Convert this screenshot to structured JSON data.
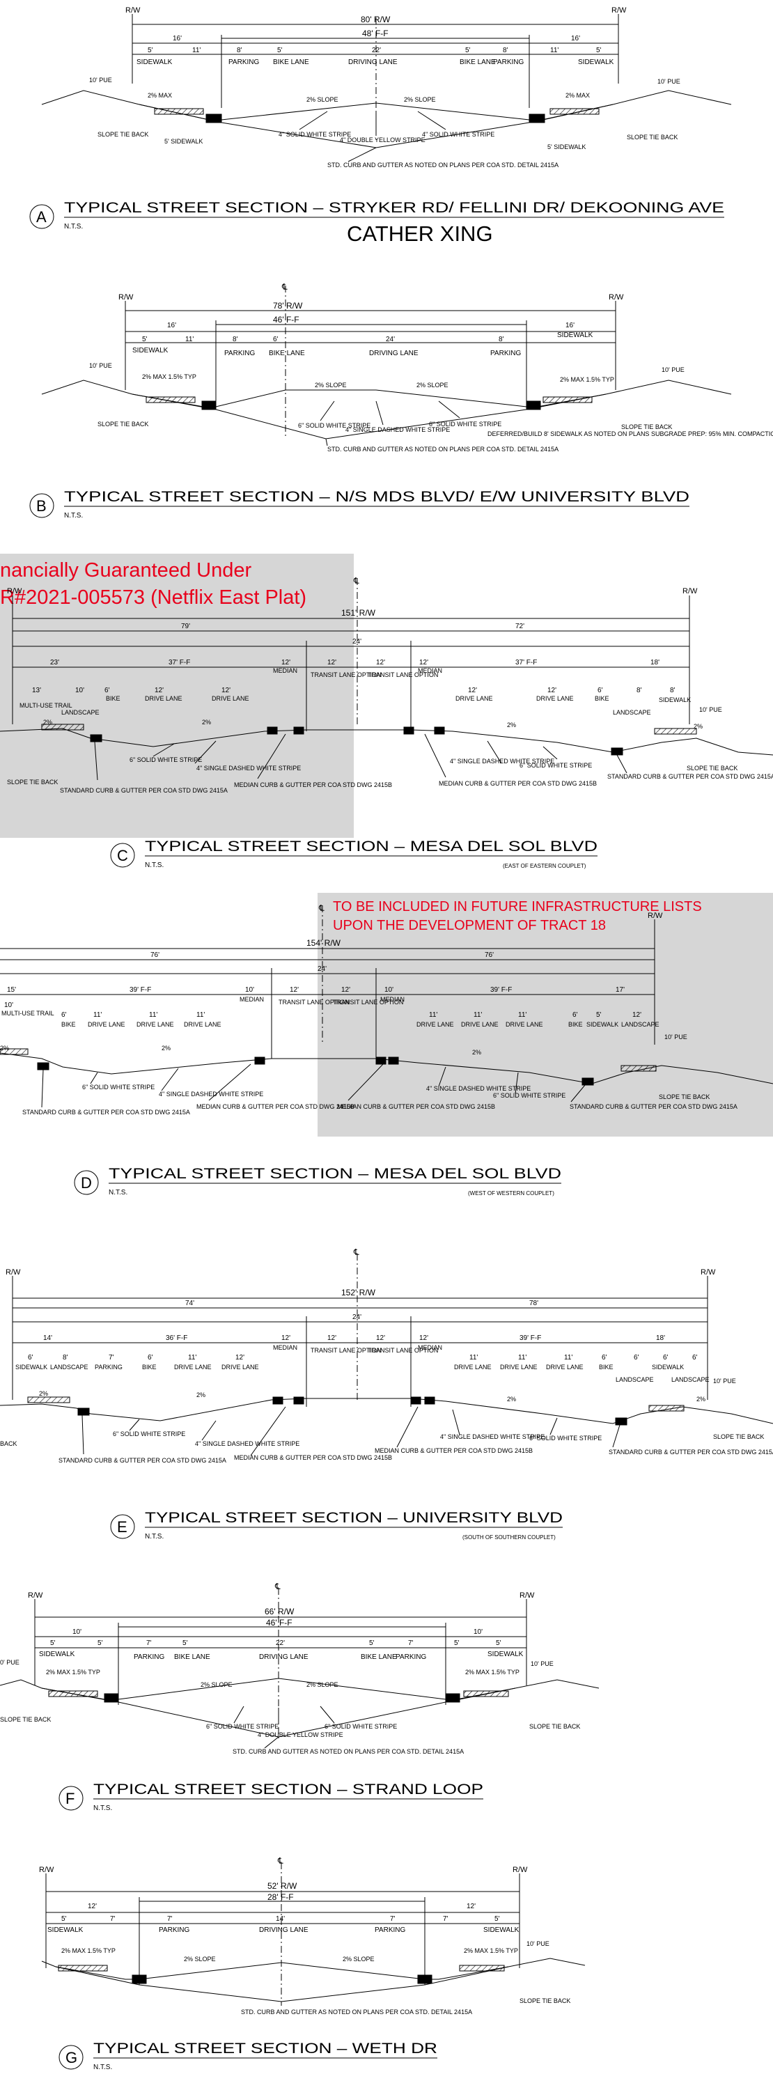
{
  "sections": [
    {
      "letter": "A",
      "title": "TYPICAL STREET SECTION – STRYKER RD/ FELLINI DR/ DEKOONING AVE",
      "scale": "N.T.S.",
      "subtitle": "CATHER XING",
      "row": "80' R/W",
      "ff": "48' F-F",
      "dims": [
        "16'",
        "5'",
        "11'",
        "8'",
        "5'",
        "22'",
        "5'",
        "8'",
        "11'",
        "5'",
        "16'"
      ],
      "lanes": [
        "SIDEWALK",
        "PARKING",
        "BIKE LANE",
        "DRIVING LANE",
        "BIKE LANE",
        "PARKING",
        "SIDEWALK"
      ],
      "notes": [
        "10' PUE",
        "2% MAX",
        "2% SLOPE",
        "2% SLOPE",
        "2% MAX",
        "10' PUE",
        "4\" SOLID WHITE STRIPE",
        "4\" DOUBLE YELLOW STRIPE",
        "4\" SOLID WHITE STRIPE",
        "SLOPE TIE BACK",
        "5' SIDEWALK",
        "STD. CURB AND GUTTER AS NOTED ON PLANS PER COA STD. DETAIL 2415A",
        "5' SIDEWALK",
        "SLOPE TIE BACK"
      ]
    },
    {
      "letter": "B",
      "title": "TYPICAL STREET SECTION – N/S MDS BLVD/ E/W UNIVERSITY BLVD",
      "scale": "N.T.S.",
      "row": "78' R/W",
      "ff": "46' F-F",
      "dims": [
        "16'",
        "5'",
        "11'",
        "8'",
        "6'",
        "24'",
        "8'",
        "16'"
      ],
      "lanes": [
        "SIDEWALK",
        "PARKING",
        "BIKE LANE",
        "DRIVING LANE",
        "PARKING",
        "SIDEWALK"
      ],
      "notes": [
        "10' PUE",
        "2% MAX 1.5% TYP",
        "2% SLOPE",
        "2% SLOPE",
        "2% MAX 1.5% TYP",
        "10' PUE",
        "6\" SOLID WHITE STRIPE",
        "4\" SINGLE DASHED WHITE STRIPE",
        "6\" SOLID WHITE STRIPE",
        "SLOPE TIE BACK",
        "STD. CURB AND GUTTER AS NOTED ON PLANS PER COA STD. DETAIL 2415A",
        "DEFERRED/BUILD 8' SIDEWALK AS NOTED ON PLANS SUBGRADE PREP: 95% MIN. COMPACTION",
        "SLOPE TIE BACK"
      ]
    },
    {
      "letter": "C",
      "title": "TYPICAL STREET SECTION – MESA DEL SOL BLVD",
      "scale": "N.T.S.",
      "subnote": "(EAST OF EASTERN COUPLET)",
      "overlay": "nancially Guaranteed Under\nR#2021-005573 (Netflix East Plat)",
      "row": "151' R/W",
      "dims": [
        "79'",
        "24'",
        "72'",
        "23'",
        "37' F-F",
        "12'",
        "12'",
        "12'",
        "12'",
        "37' F-F",
        "18'",
        "13'",
        "10'",
        "6'",
        "12'",
        "12'",
        "12'",
        "12'",
        "6'",
        "8'",
        "8'"
      ],
      "lanes": [
        "MULTI-USE TRAIL",
        "LANDSCAPE",
        "BIKE",
        "DRIVE LANE",
        "DRIVE LANE",
        "MEDIAN",
        "TRANSIT LANE OPTION",
        "TRANSIT LANE OPTION",
        "MEDIAN",
        "DRIVE LANE",
        "DRIVE LANE",
        "BIKE",
        "LANDSCAPE",
        "SIDEWALK"
      ],
      "notes": [
        "2%",
        "2%",
        "2%",
        "2%",
        "10' PUE",
        "6\" SOLID WHITE STRIPE",
        "4\" SINGLE DASHED WHITE STRIPE",
        "MEDIAN CURB & GUTTER PER COA STD DWG 2415B",
        "MEDIAN CURB & GUTTER PER COA STD DWG 2415B",
        "4\" SINGLE DASHED WHITE STRIPE",
        "6\" SOLID WHITE STRIPE",
        "STANDARD CURB & GUTTER PER COA STD DWG 2415A",
        "STANDARD CURB & GUTTER PER COA STD DWG 2415A",
        "SLOPE TIE BACK",
        "SLOPE TIE BACK"
      ]
    },
    {
      "letter": "D",
      "title": "TYPICAL STREET SECTION – MESA DEL SOL BLVD",
      "scale": "N.T.S.",
      "subnote": "(WEST OF WESTERN COUPLET)",
      "overlay": "TO BE INCLUDED IN FUTURE INFRASTRUCTURE LISTS\nUPON THE DEVELOPMENT OF TRACT 18",
      "row": "154' R/W",
      "dims": [
        "76'",
        "24'",
        "76'",
        "15'",
        "39' F-F",
        "10'",
        "12'",
        "12'",
        "10'",
        "39' F-F",
        "17'",
        "10'",
        "6'",
        "11'",
        "11'",
        "11'",
        "11'",
        "11'",
        "11'",
        "6'",
        "5'",
        "12'"
      ],
      "lanes": [
        "MULTI-USE TRAIL",
        "BIKE",
        "DRIVE LANE",
        "DRIVE LANE",
        "DRIVE LANE",
        "MEDIAN",
        "TRANSIT LANE OPTION",
        "TRANSIT LANE OPTION",
        "MEDIAN",
        "DRIVE LANE",
        "DRIVE LANE",
        "DRIVE LANE",
        "BIKE",
        "SIDEWALK",
        "LANDSCAPE"
      ],
      "notes": [
        "2%",
        "2%",
        "2%",
        "10' PUE",
        "6\" SOLID WHITE STRIPE",
        "4\" SINGLE DASHED WHITE STRIPE",
        "MEDIAN CURB & GUTTER PER COA STD DWG 2415B",
        "MEDIAN CURB & GUTTER PER COA STD DWG 2415B",
        "4\" SINGLE DASHED WHITE STRIPE",
        "6\" SOLID WHITE STRIPE",
        "STANDARD CURB & GUTTER PER COA STD DWG 2415A",
        "STANDARD CURB & GUTTER PER COA STD DWG 2415A",
        "SLOPE TIE BACK"
      ]
    },
    {
      "letter": "E",
      "title": "TYPICAL STREET SECTION – UNIVERSITY BLVD",
      "scale": "N.T.S.",
      "subnote": "(SOUTH OF SOUTHERN COUPLET)",
      "row": "152' R/W",
      "dims": [
        "74'",
        "24'",
        "78'",
        "14'",
        "36' F-F",
        "12'",
        "12'",
        "12'",
        "12'",
        "39' F-F",
        "18'",
        "6'",
        "8'",
        "7'",
        "6'",
        "11'",
        "12'",
        "11'",
        "11'",
        "11'",
        "6'",
        "6'",
        "6'",
        "6'"
      ],
      "lanes": [
        "SIDEWALK",
        "LANDSCAPE",
        "PARKING",
        "BIKE",
        "DRIVE LANE",
        "DRIVE LANE",
        "MEDIAN",
        "TRANSIT LANE OPTION",
        "TRANSIT LANE OPTION",
        "MEDIAN",
        "DRIVE LANE",
        "DRIVE LANE",
        "DRIVE LANE",
        "BIKE",
        "LANDSCAPE",
        "SIDEWALK",
        "LANDSCAPE"
      ],
      "notes": [
        "2%",
        "2%",
        "2%",
        "2%",
        "10' PUE",
        "6\" SOLID WHITE STRIPE",
        "4\" SINGLE DASHED WHITE STRIPE",
        "MEDIAN CURB & GUTTER PER COA STD DWG 2415B",
        "MEDIAN CURB & GUTTER PER COA STD DWG 2415B",
        "4\" SINGLE DASHED WHITE STRIPE",
        "6\" SOLID WHITE STRIPE",
        "STANDARD CURB & GUTTER PER COA STD DWG 2415A",
        "STANDARD CURB & GUTTER PER COA STD DWG 2415A",
        "SLOPE TIE BACK",
        "BACK"
      ]
    },
    {
      "letter": "F",
      "title": "TYPICAL STREET SECTION – STRAND LOOP",
      "scale": "N.T.S.",
      "row": "66' R/W",
      "ff": "46' F-F",
      "dims": [
        "10'",
        "5'",
        "5'",
        "7'",
        "5'",
        "22'",
        "5'",
        "7'",
        "5'",
        "5'",
        "10'"
      ],
      "lanes": [
        "SIDEWALK",
        "PARKING",
        "BIKE LANE",
        "DRIVING LANE",
        "BIKE LANE",
        "PARKING",
        "SIDEWALK"
      ],
      "notes": [
        "0' PUE",
        "2% MAX 1.5% TYP",
        "2% SLOPE",
        "2% SLOPE",
        "2% MAX 1.5% TYP",
        "10' PUE",
        "6\" SOLID WHITE STRIPE",
        "4\" DOUBLE YELLOW STRIPE",
        "6\" SOLID WHITE STRIPE",
        "SLOPE TIE BACK",
        "STD. CURB AND GUTTER AS NOTED ON PLANS PER COA STD. DETAIL 2415A",
        "SLOPE TIE BACK"
      ]
    },
    {
      "letter": "G",
      "title": "TYPICAL STREET SECTION – WETH DR",
      "scale": "N.T.S.",
      "row": "52' R/W",
      "ff": "28' F-F",
      "dims": [
        "12'",
        "5'",
        "7'",
        "7'",
        "14'",
        "7'",
        "7'",
        "5'",
        "12'"
      ],
      "lanes": [
        "SIDEWALK",
        "PARKING",
        "DRIVING LANE",
        "PARKING",
        "SIDEWALK"
      ],
      "notes": [
        "2% MAX 1.5% TYP",
        "2% SLOPE",
        "2% SLOPE",
        "2% MAX 1.5% TYP",
        "10' PUE",
        "STD. CURB AND GUTTER AS NOTED ON PLANS PER COA STD. DETAIL 2415A",
        "SLOPE TIE BACK"
      ]
    }
  ],
  "rw_label": "R/W",
  "cl_label": "℄",
  "colors": {
    "ink": "#000000",
    "overlay_fill": "#d6d6d6",
    "overlay_text": "#e8001c"
  }
}
